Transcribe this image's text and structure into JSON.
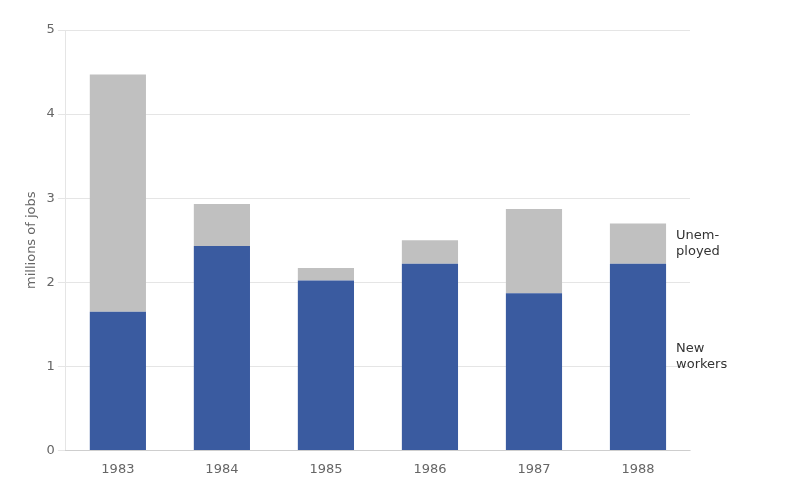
{
  "chart_data": {
    "type": "bar",
    "categories": [
      "1983",
      "1984",
      "1985",
      "1986",
      "1987",
      "1988"
    ],
    "series": [
      {
        "name": "New\nworkers",
        "color": "#3A5BA0",
        "values": [
          1.65,
          2.43,
          2.02,
          2.22,
          1.87,
          2.22
        ]
      },
      {
        "name": "Unem-\nployed",
        "color": "#C0C0C0",
        "values": [
          2.82,
          0.5,
          0.15,
          0.28,
          1.0,
          0.48
        ]
      }
    ],
    "ylabel": "millions of jobs",
    "ylim": [
      0,
      5
    ],
    "yticks": [
      0,
      1,
      2,
      3,
      4,
      5
    ],
    "stacked": true,
    "grid": true
  }
}
